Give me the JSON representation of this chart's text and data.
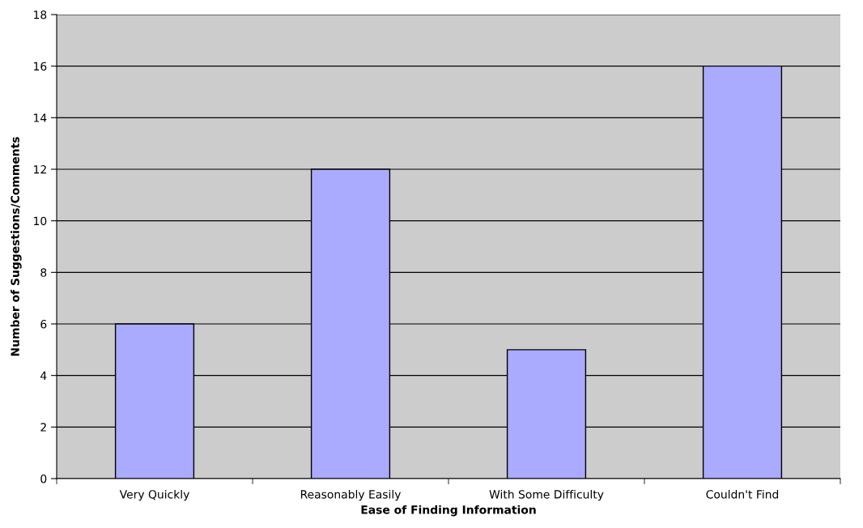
{
  "chart_data": {
    "type": "bar",
    "xlabel": "Ease of Finding Information",
    "ylabel": "Number of Suggestions/Comments",
    "categories": [
      "Very Quickly",
      "Reasonably Easily",
      "With Some Difficulty",
      "Couldn't Find"
    ],
    "values": [
      6,
      12,
      5,
      16
    ],
    "color": "#aaaaff",
    "ylim": [
      0,
      18
    ],
    "yticks": [
      0,
      2,
      4,
      6,
      8,
      10,
      12,
      14,
      16,
      18
    ],
    "grid": "y",
    "legend": false
  }
}
